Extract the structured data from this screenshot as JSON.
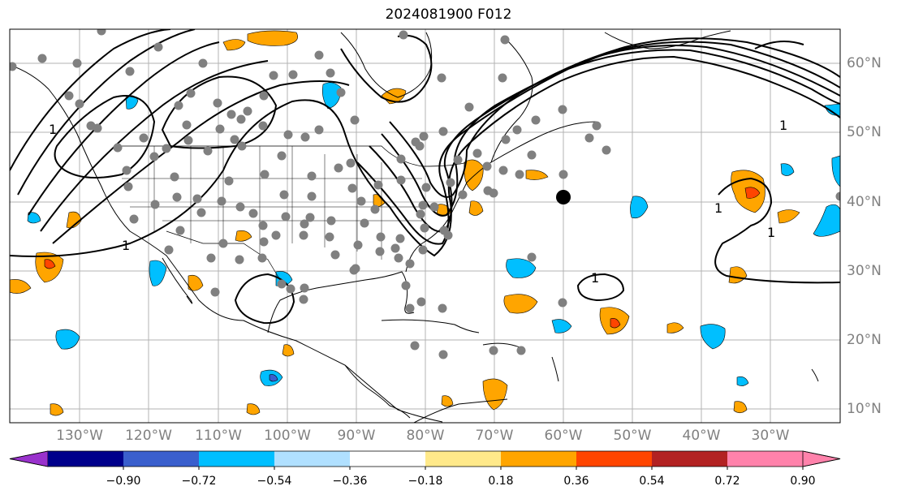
{
  "title": "2024081900 F012",
  "lon_labels": [
    "130°W",
    "120°W",
    "110°W",
    "100°W",
    "90°W",
    "80°W",
    "70°W",
    "60°W",
    "50°W",
    "40°W",
    "30°W"
  ],
  "lat_labels": [
    "60°N",
    "50°N",
    "40°N",
    "30°N",
    "20°N",
    "10°N"
  ],
  "contour_label": "1",
  "colorbar": {
    "ticks": [
      "−0.90",
      "−0.72",
      "−0.54",
      "−0.36",
      "−0.18",
      "0.18",
      "0.36",
      "0.54",
      "0.72",
      "0.90"
    ],
    "colors": [
      "#9932cc",
      "#00008b",
      "#3a5fcd",
      "#00bfff",
      "#b0e0ff",
      "#ffffff",
      "#ffe98a",
      "#ffa500",
      "#ff4500",
      "#b22222",
      "#ff82ab"
    ]
  },
  "colors": {
    "station": "#808080",
    "marker": "#000000",
    "grid": "#b3b3b3",
    "coast": "#000000"
  }
}
